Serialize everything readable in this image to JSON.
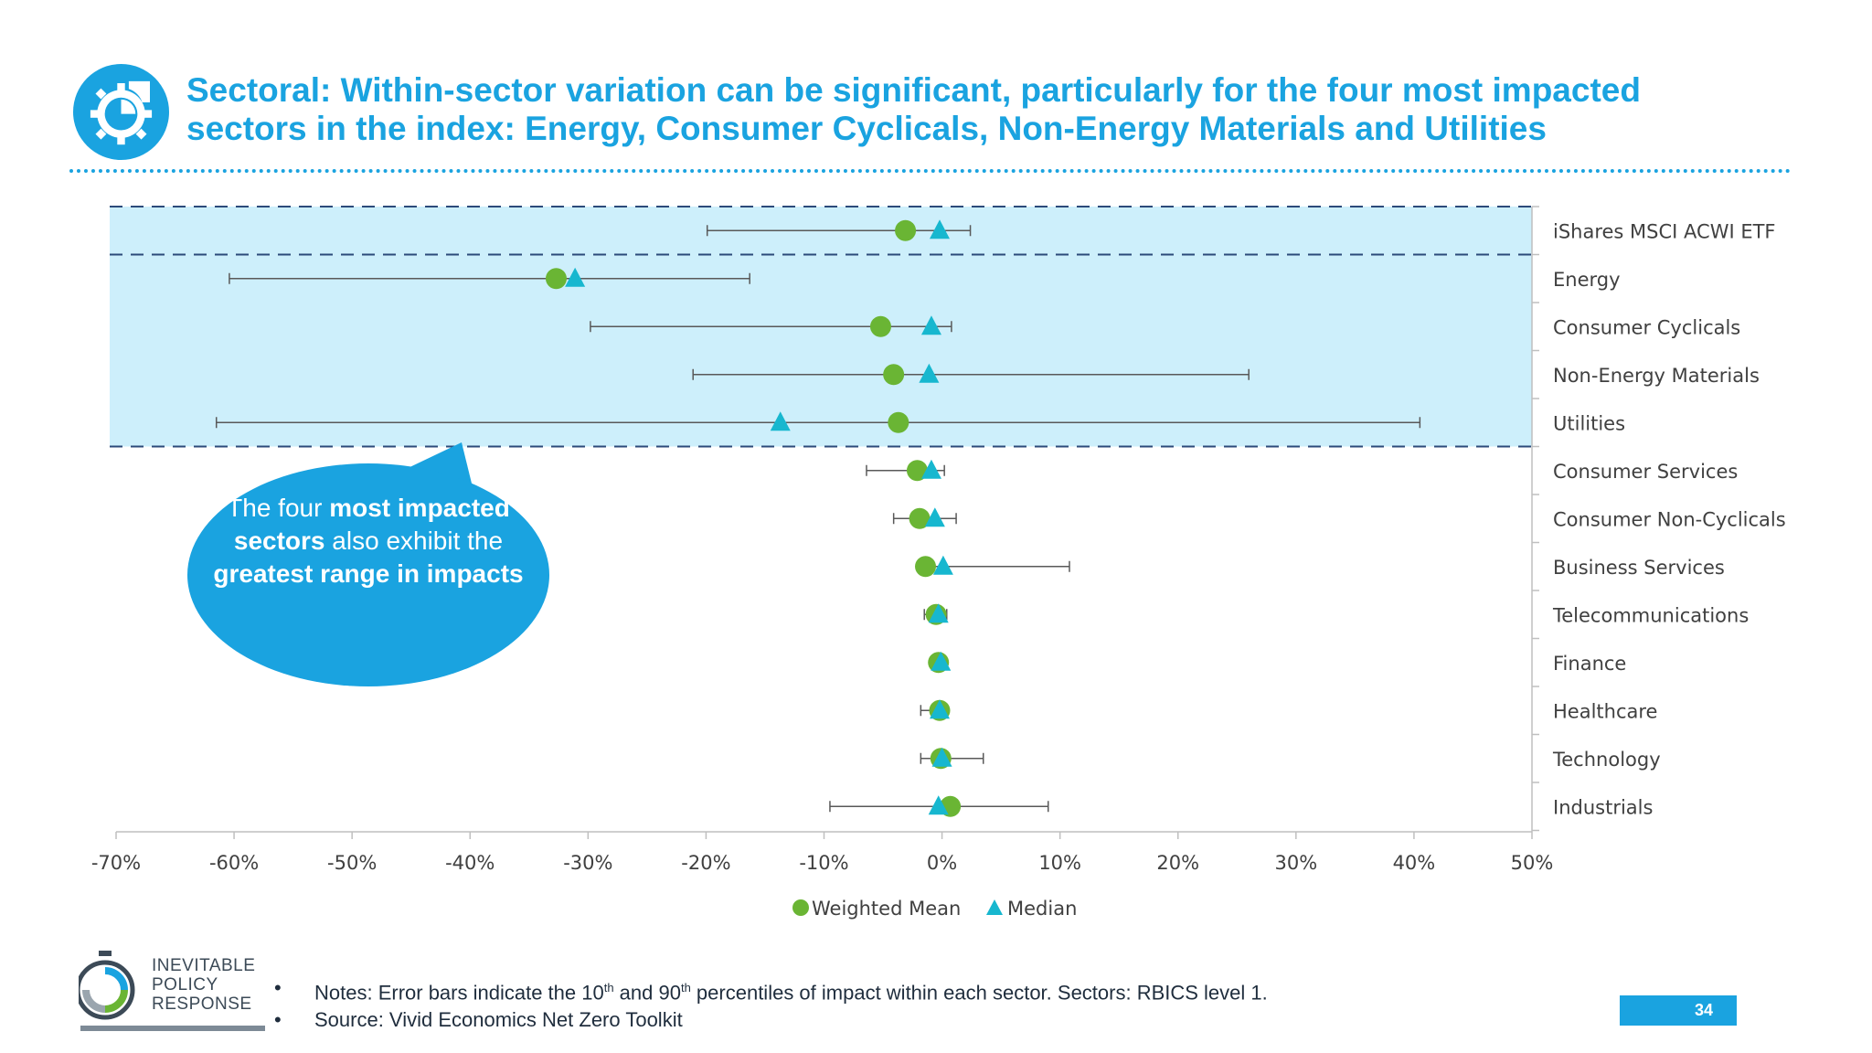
{
  "slide": {
    "title_line1": "Sectoral: Within-sector variation can be significant, particularly for the four most impacted",
    "title_line2": "sectors in the index: Energy, Consumer Cyclicals, Non-Energy Materials and Utilities",
    "page_number": "34",
    "colors": {
      "accent": "#1aa3e0",
      "mean": "#6ab534",
      "median": "#17b7cf",
      "highlight": "#cdeffb"
    }
  },
  "callout": {
    "p1": "The four ",
    "p1b": "most impacted sectors",
    "p2": " also exhibit the ",
    "p2b": "greatest range in impacts"
  },
  "logo": {
    "line1": "INEVITABLE",
    "line2": "POLICY",
    "line3": "RESPONSE"
  },
  "notes": {
    "bullet": "•",
    "n1_a": "Notes: Error bars indicate the 10",
    "n1_sup1": "th",
    "n1_b": " and 90",
    "n1_sup2": "th",
    "n1_c": " percentiles of impact within each sector.  Sectors: RBICS level 1.",
    "n2": "Source: Vivid Economics Net Zero Toolkit"
  },
  "chart_data": {
    "type": "scatter",
    "orientation": "horizontal",
    "x_unit": "%",
    "xlim": [
      -70,
      50
    ],
    "xticks": [
      -70,
      -60,
      -50,
      -40,
      -30,
      -20,
      -10,
      0,
      10,
      20,
      30,
      40,
      50
    ],
    "xtick_labels": [
      "-70%",
      "-60%",
      "-50%",
      "-40%",
      "-30%",
      "-20%",
      "-10%",
      "0%",
      "10%",
      "20%",
      "30%",
      "40%",
      "50%"
    ],
    "categories": [
      "iShares MSCI ACWI ETF",
      "Energy",
      "Consumer Cyclicals",
      "Non-Energy Materials",
      "Utilities",
      "Consumer Services",
      "Consumer Non-Cyclicals",
      "Business Services",
      "Telecommunications",
      "Finance",
      "Healthcare",
      "Technology",
      "Industrials"
    ],
    "series": [
      {
        "name": "Weighted Mean",
        "marker": "circle",
        "color": "#6ab534",
        "values": [
          -3.1,
          -32.7,
          -5.2,
          -4.1,
          -3.7,
          -2.1,
          -1.9,
          -1.4,
          -0.5,
          -0.3,
          -0.2,
          -0.1,
          0.7
        ]
      },
      {
        "name": "Median",
        "marker": "triangle",
        "color": "#17b7cf",
        "values": [
          -0.2,
          -31.1,
          -0.9,
          -1.1,
          -13.7,
          -0.9,
          -0.6,
          0.1,
          -0.3,
          -0.1,
          -0.2,
          0.0,
          -0.3
        ]
      }
    ],
    "error_bars": {
      "low": [
        -19.9,
        -60.4,
        -29.8,
        -21.1,
        -61.5,
        -6.4,
        -4.1,
        -1.4,
        -1.5,
        -0.3,
        -1.8,
        -1.8,
        -9.5
      ],
      "high": [
        2.4,
        -16.3,
        0.8,
        26.0,
        40.5,
        0.2,
        1.2,
        10.8,
        0.4,
        0.2,
        0.3,
        3.5,
        9.0
      ]
    },
    "highlight_rows": [
      0,
      4
    ],
    "legend": "bottom",
    "grid": false
  }
}
